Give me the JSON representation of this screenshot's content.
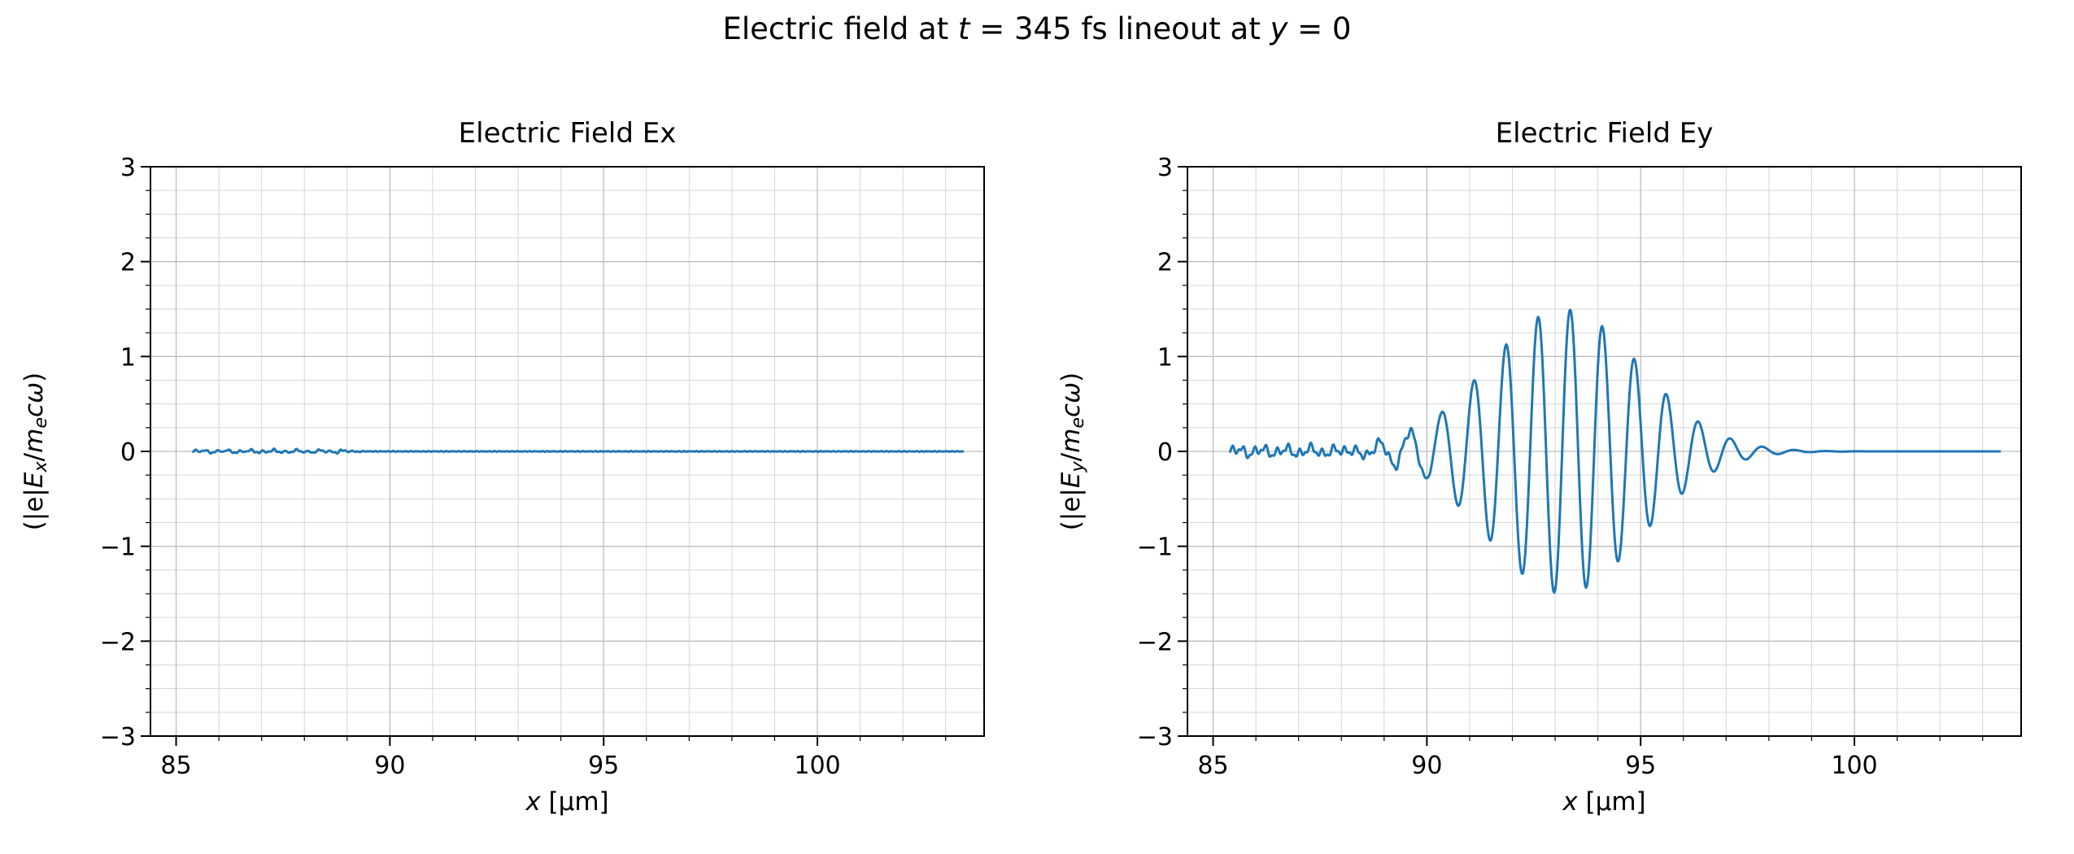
{
  "figure": {
    "suptitle": "Electric field at t = 345 fs lineout at y = 0",
    "suptitle_segments": [
      {
        "t": "Electric field at ",
        "s": "n"
      },
      {
        "t": "t",
        "s": "i"
      },
      {
        "t": " = 345 fs lineout at ",
        "s": "n"
      },
      {
        "t": "y",
        "s": "i"
      },
      {
        "t": " = 0",
        "s": "n"
      }
    ],
    "background": "#ffffff",
    "text_color": "#000000"
  },
  "chart_data": [
    {
      "type": "line",
      "title": "Electric Field Ex",
      "xlabel": "x [μm]",
      "ylabel": "(|e|Ex/mecω)",
      "xlabel_segments": [
        {
          "t": "x",
          "s": "i"
        },
        {
          "t": " [μm]",
          "s": "n"
        }
      ],
      "ylabel_segments": [
        {
          "t": "(|e|",
          "s": "n"
        },
        {
          "t": "E",
          "s": "i"
        },
        {
          "t": "x",
          "s": "isub"
        },
        {
          "t": "/",
          "s": "n"
        },
        {
          "t": "m",
          "s": "i"
        },
        {
          "t": "e",
          "s": "isub"
        },
        {
          "t": "c",
          "s": "i"
        },
        {
          "t": "ω",
          "s": "i"
        },
        {
          "t": ")",
          "s": "n"
        }
      ],
      "xlim": [
        84.4,
        103.9
      ],
      "ylim": [
        -3,
        3
      ],
      "xticks": [
        85,
        90,
        95,
        100
      ],
      "yticks": [
        -3,
        -2,
        -1,
        0,
        1,
        2,
        3
      ],
      "x_minor_step": 1,
      "y_minor_step": 0.25,
      "grid": true,
      "legend": false,
      "line_color": "#1f77b4",
      "line_width": 3,
      "axis_color": "#000000",
      "grid_major_color": "#bdbdbd",
      "grid_minor_color": "#d6d6d6",
      "series": [
        {
          "name": "Ex",
          "description": "flat near-zero field with tiny numerical noise on the left",
          "model": {
            "type": "flat",
            "x_start": 85.4,
            "x_end": 103.4,
            "base": 0,
            "noise_amp": 0.02,
            "noise_x_end": 88.8,
            "flat_noise_amp": 0.004
          }
        }
      ]
    },
    {
      "type": "line",
      "title": "Electric Field Ey",
      "xlabel": "x [μm]",
      "ylabel": "(|e|Ey/mecω)",
      "xlabel_segments": [
        {
          "t": "x",
          "s": "i"
        },
        {
          "t": " [μm]",
          "s": "n"
        }
      ],
      "ylabel_segments": [
        {
          "t": "(|e|",
          "s": "n"
        },
        {
          "t": "E",
          "s": "i"
        },
        {
          "t": "y",
          "s": "isub"
        },
        {
          "t": "/",
          "s": "n"
        },
        {
          "t": "m",
          "s": "i"
        },
        {
          "t": "e",
          "s": "isub"
        },
        {
          "t": "c",
          "s": "i"
        },
        {
          "t": "ω",
          "s": "i"
        },
        {
          "t": ")",
          "s": "n"
        }
      ],
      "xlim": [
        84.4,
        103.9
      ],
      "ylim": [
        -3,
        3
      ],
      "xticks": [
        85,
        90,
        95,
        100
      ],
      "yticks": [
        -3,
        -2,
        -1,
        0,
        1,
        2,
        3
      ],
      "x_minor_step": 1,
      "y_minor_step": 0.25,
      "grid": true,
      "legend": false,
      "line_color": "#1f77b4",
      "line_width": 3,
      "axis_color": "#000000",
      "grid_major_color": "#bdbdbd",
      "grid_minor_color": "#d6d6d6",
      "series": [
        {
          "name": "Ey",
          "description": "laser pulse wave packet centered near x = 93.2 μm, peak amplitude ~1.5, oscillation wavelength ~0.75 μm, envelope visible from ~89.5 to ~97 μm, small noise on left, flat zero after ~97 μm",
          "model": {
            "type": "gaussian_wave_packet",
            "x_start": 85.4,
            "x_end": 103.4,
            "base": 0,
            "center": 93.2,
            "amplitude": 1.5,
            "sigma": 1.78,
            "wavelength": 0.75,
            "phase": 0.3,
            "noise_amp": 0.07,
            "noise_x_end": 89.6
          }
        }
      ]
    }
  ]
}
